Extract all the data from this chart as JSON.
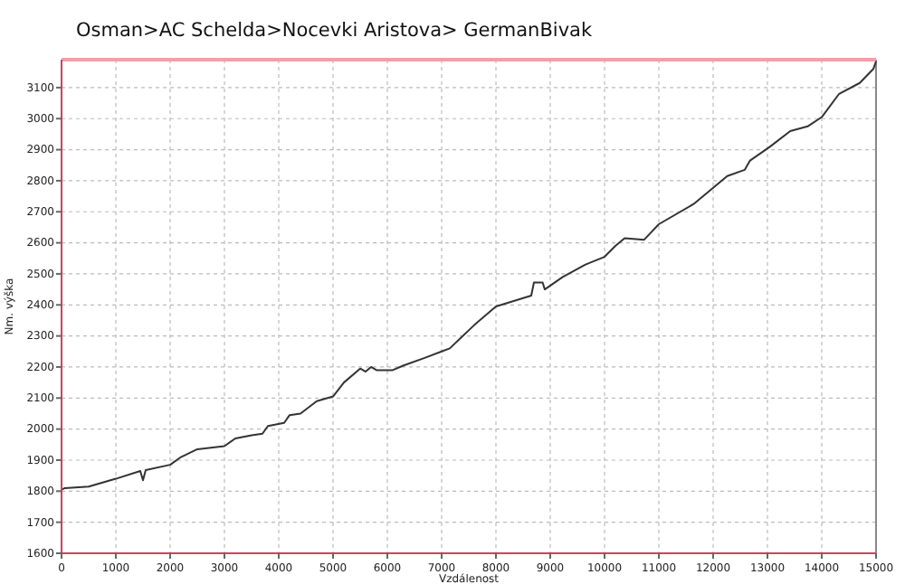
{
  "chart_data": {
    "type": "line",
    "title": "Osman>AC Schelda>Nocevki Aristova> GermanBivak",
    "xlabel": "Vzdálenost",
    "ylabel": "Nm. výška",
    "x": [
      0,
      60,
      500,
      1000,
      1450,
      1500,
      1550,
      2000,
      2200,
      2500,
      3000,
      3200,
      3500,
      3700,
      3800,
      4100,
      4200,
      4400,
      4700,
      5000,
      5200,
      5500,
      5600,
      5700,
      5800,
      6100,
      6300,
      6700,
      7000,
      7150,
      7600,
      8000,
      8650,
      8700,
      8860,
      8900,
      9230,
      9650,
      10000,
      10200,
      10370,
      10730,
      11000,
      11640,
      12260,
      12580,
      12680,
      13050,
      13420,
      13740,
      14000,
      14320,
      14700,
      14950,
      15000
    ],
    "series": [
      {
        "color": "#333333",
        "values": [
          1805,
          1810,
          1815,
          1840,
          1865,
          1835,
          1868,
          1885,
          1910,
          1935,
          1945,
          1970,
          1980,
          1985,
          2010,
          2020,
          2045,
          2050,
          2090,
          2105,
          2150,
          2195,
          2185,
          2200,
          2190,
          2190,
          2205,
          2230,
          2250,
          2260,
          2335,
          2395,
          2430,
          2472,
          2472,
          2450,
          2490,
          2530,
          2555,
          2590,
          2615,
          2610,
          2660,
          2725,
          2815,
          2835,
          2865,
          2910,
          2960,
          2975,
          3005,
          3080,
          3115,
          3160,
          3185
        ]
      }
    ],
    "xlim": [
      0,
      15000
    ],
    "xticks": [
      0,
      1000,
      2000,
      3000,
      4000,
      5000,
      6000,
      7000,
      8000,
      9000,
      10000,
      11000,
      12000,
      13000,
      14000,
      15000
    ],
    "ylim": [
      1600,
      3190
    ],
    "yticks": [
      1600,
      1700,
      1800,
      1900,
      2000,
      2100,
      2200,
      2300,
      2400,
      2500,
      2600,
      2700,
      2800,
      2900,
      3000,
      3100
    ],
    "grid": true,
    "marker": "none",
    "line_style": "solid"
  }
}
